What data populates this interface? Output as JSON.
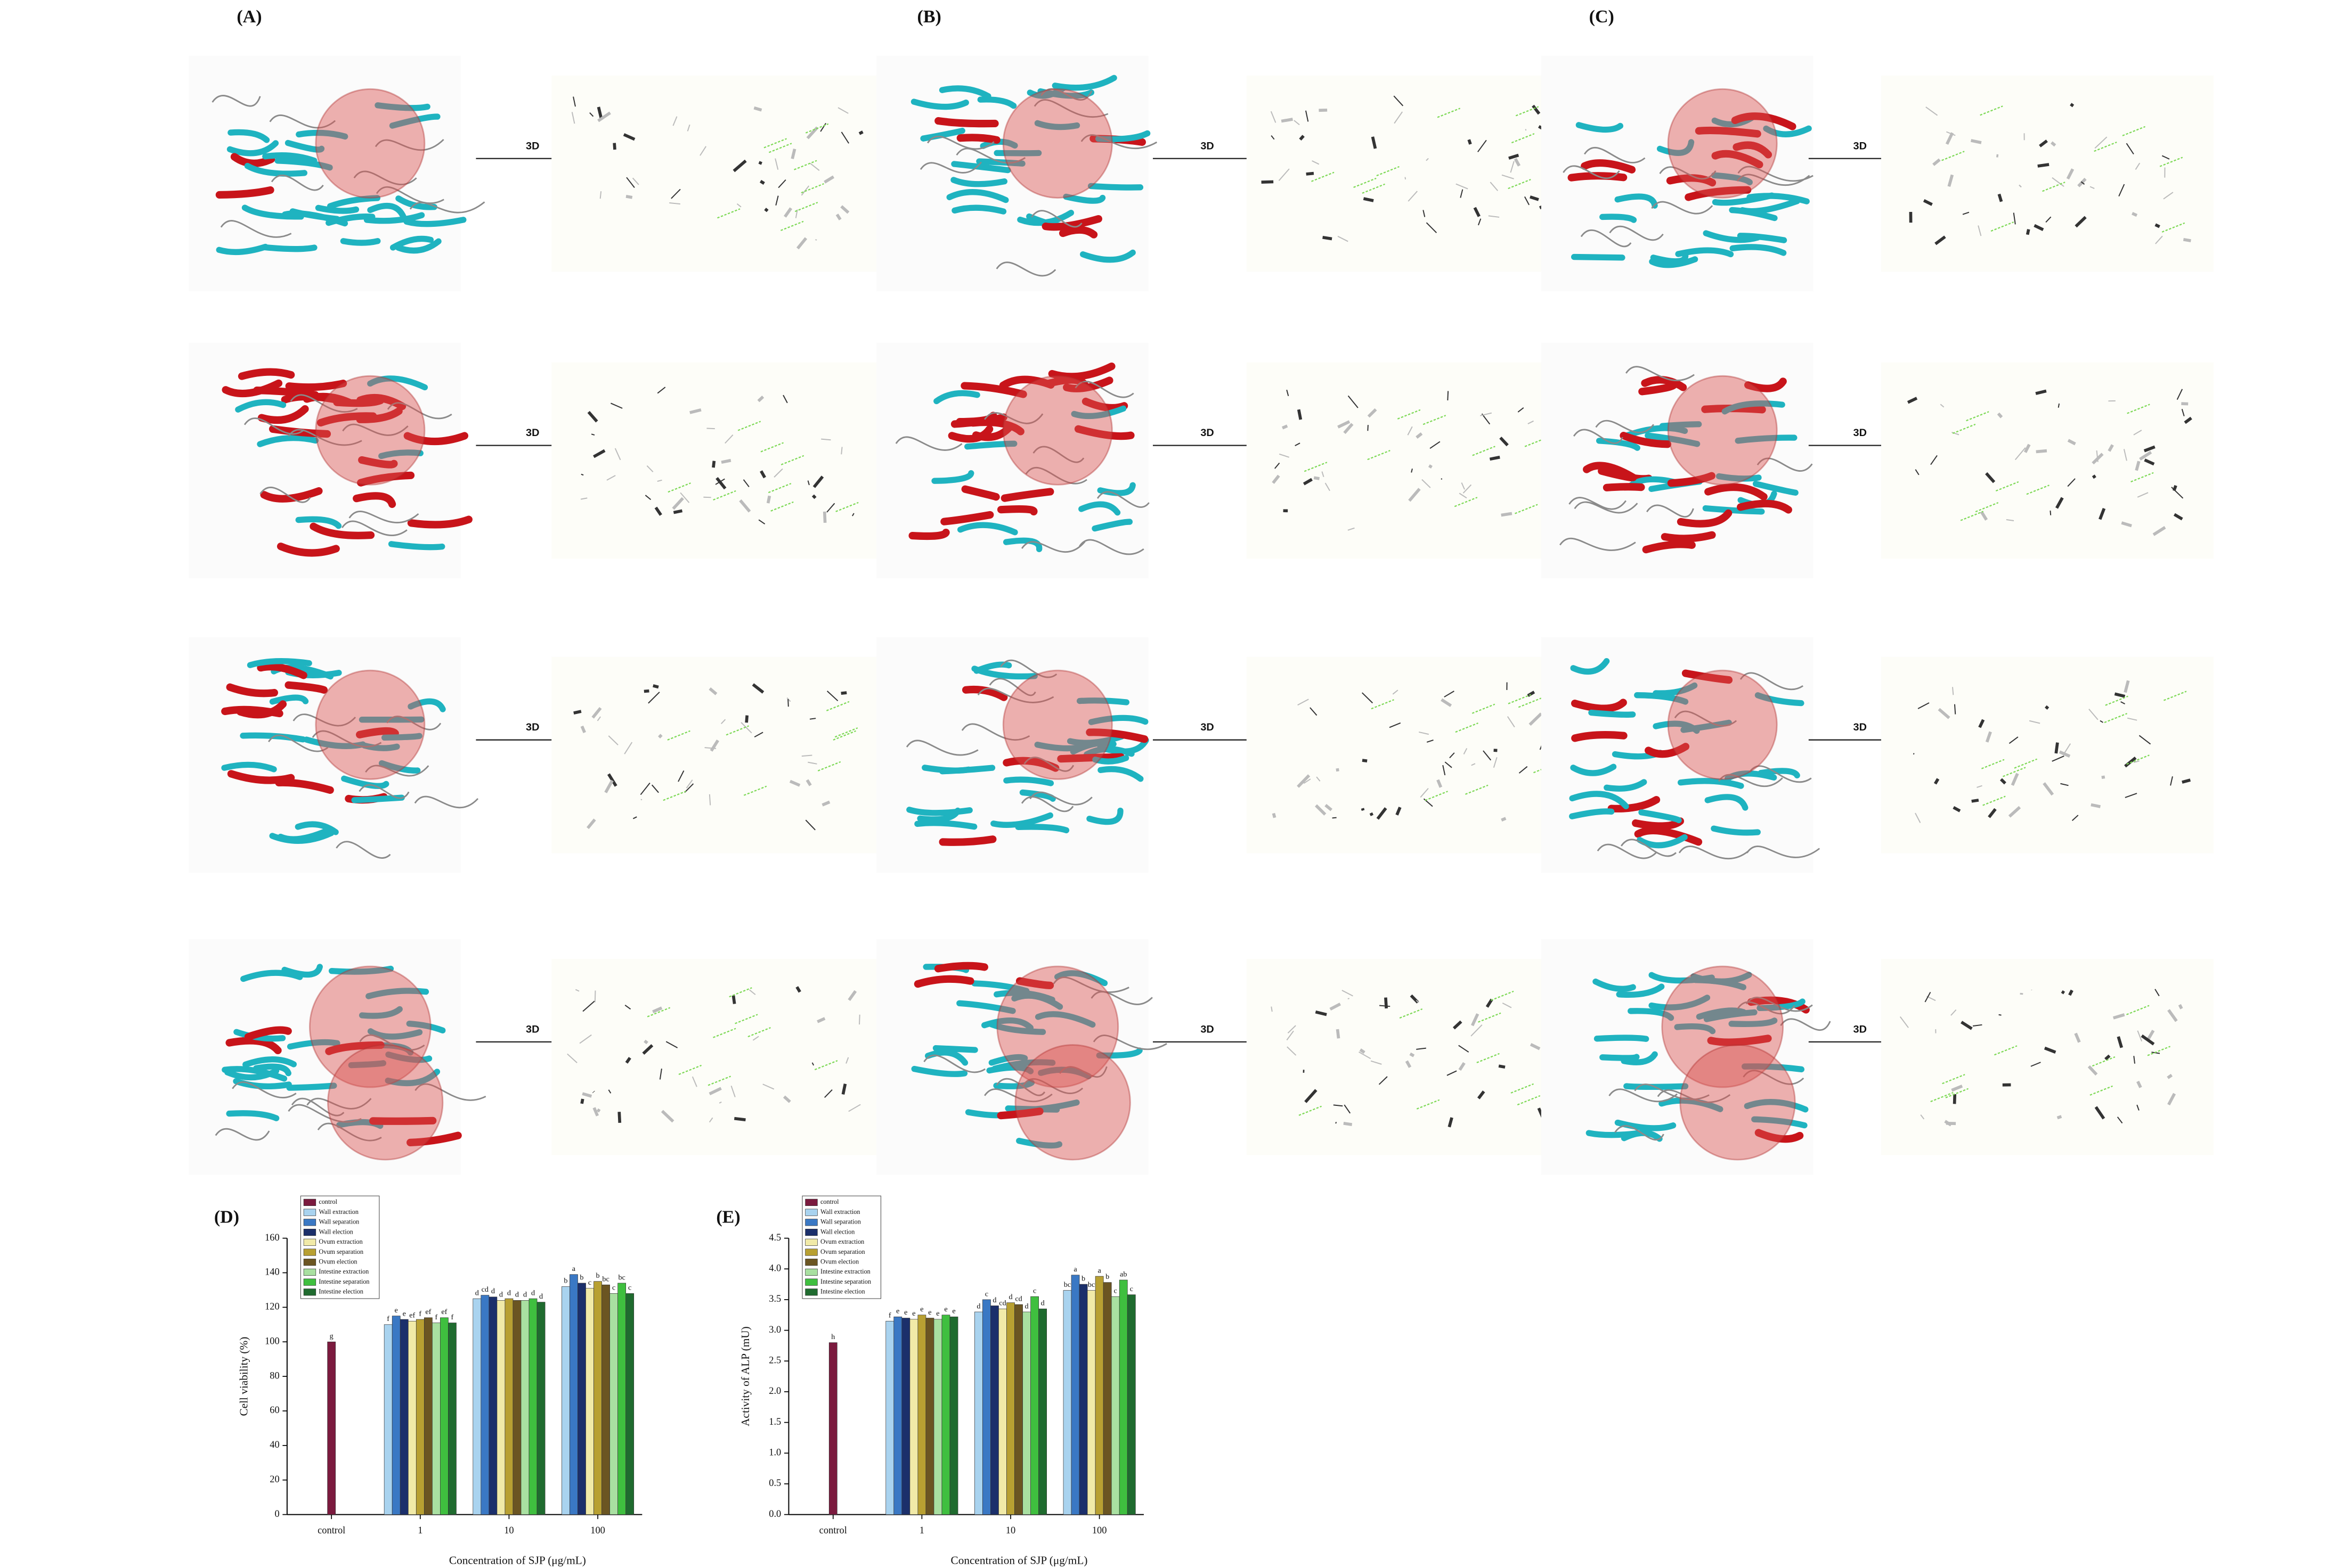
{
  "panels": [
    "(A)",
    "(B)",
    "(C)",
    "(D)",
    "(E)"
  ],
  "arrow_labels": [
    "3D",
    "3D",
    "3D",
    "3D",
    "3D",
    "3D",
    "3D",
    "3D",
    "3D",
    "3D",
    "3D",
    "3D"
  ],
  "chart_data": [
    {
      "type": "bar",
      "ylabel": "Cell viability (%)",
      "xlabel": "Concentration of SJP (μg/mL)",
      "categories": [
        "control",
        "1",
        "10",
        "100"
      ],
      "ylim": [
        0,
        160
      ],
      "yticks": [
        0,
        20,
        40,
        60,
        80,
        100,
        120,
        140,
        160
      ],
      "legend": "upper left",
      "series": [
        {
          "name": "control",
          "color": "#7b1a3e",
          "values": [
            100,
            null,
            null,
            null
          ],
          "significance": [
            "g",
            null,
            null,
            null
          ]
        },
        {
          "name": "Wall extraction",
          "color": "#a9d3ef",
          "values": [
            null,
            110,
            125,
            132
          ],
          "significance": [
            null,
            "f",
            "d",
            "b"
          ]
        },
        {
          "name": "Wall separation",
          "color": "#3a78c4",
          "values": [
            null,
            115,
            127,
            139
          ],
          "significance": [
            null,
            "e",
            "cd",
            "a"
          ]
        },
        {
          "name": "Wall election",
          "color": "#1b2f6b",
          "values": [
            null,
            113,
            126,
            134
          ],
          "significance": [
            null,
            "e",
            "d",
            "b"
          ]
        },
        {
          "name": "Ovum extraction",
          "color": "#f1eaa8",
          "values": [
            null,
            112,
            124,
            131
          ],
          "significance": [
            null,
            "ef",
            "d",
            "c"
          ]
        },
        {
          "name": "Ovum separation",
          "color": "#b8a032",
          "values": [
            null,
            113,
            125,
            135
          ],
          "significance": [
            null,
            "f",
            "d",
            "b"
          ]
        },
        {
          "name": "Ovum election",
          "color": "#6b5522",
          "values": [
            null,
            114,
            124,
            133
          ],
          "significance": [
            null,
            "ef",
            "d",
            "bc"
          ]
        },
        {
          "name": "Intestine extraction",
          "color": "#a9e0a1",
          "values": [
            null,
            111,
            124,
            128
          ],
          "significance": [
            null,
            "f",
            "d",
            "c"
          ]
        },
        {
          "name": "Intestine separation",
          "color": "#3fbf3f",
          "values": [
            null,
            114,
            125,
            134
          ],
          "significance": [
            null,
            "ef",
            "d",
            "bc"
          ]
        },
        {
          "name": "Intestine election",
          "color": "#1f6b2f",
          "values": [
            null,
            111,
            123,
            128
          ],
          "significance": [
            null,
            "f",
            "d",
            "c"
          ]
        }
      ]
    },
    {
      "type": "bar",
      "ylabel": "Activity of ALP (mU)",
      "xlabel": "Concentration of SJP (μg/mL)",
      "categories": [
        "control",
        "1",
        "10",
        "100"
      ],
      "ylim": [
        0,
        4.5
      ],
      "yticks": [
        {
          "value": 0,
          "label": "0.0"
        },
        0.5,
        {
          "value": 1,
          "label": "1.0"
        },
        1.5,
        {
          "value": 2,
          "label": "2.0"
        },
        2.5,
        {
          "value": 3,
          "label": "3.0"
        },
        3.5,
        {
          "value": 4,
          "label": "4.0"
        },
        4.5
      ],
      "legend": "upper left",
      "series": [
        {
          "name": "control",
          "color": "#7b1a3e",
          "values": [
            2.8,
            null,
            null,
            null
          ],
          "significance": [
            "h",
            null,
            null,
            null
          ]
        },
        {
          "name": "Wall extraction",
          "color": "#a9d3ef",
          "values": [
            null,
            3.15,
            3.3,
            3.65
          ],
          "significance": [
            null,
            "f",
            "d",
            "bc"
          ]
        },
        {
          "name": "Wall separation",
          "color": "#3a78c4",
          "values": [
            null,
            3.22,
            3.5,
            3.9
          ],
          "significance": [
            null,
            "e",
            "c",
            "a"
          ]
        },
        {
          "name": "Wall election",
          "color": "#1b2f6b",
          "values": [
            null,
            3.2,
            3.4,
            3.75
          ],
          "significance": [
            null,
            "e",
            "d",
            "b"
          ]
        },
        {
          "name": "Ovum extraction",
          "color": "#f1eaa8",
          "values": [
            null,
            3.18,
            3.35,
            3.65
          ],
          "significance": [
            null,
            "e",
            "cd",
            "bc"
          ]
        },
        {
          "name": "Ovum separation",
          "color": "#b8a032",
          "values": [
            null,
            3.25,
            3.45,
            3.88
          ],
          "significance": [
            null,
            "e",
            "d",
            "a"
          ]
        },
        {
          "name": "Ovum election",
          "color": "#6b5522",
          "values": [
            null,
            3.2,
            3.42,
            3.78
          ],
          "significance": [
            null,
            "e",
            "cd",
            "b"
          ]
        },
        {
          "name": "Intestine extraction",
          "color": "#a9e0a1",
          "values": [
            null,
            3.18,
            3.3,
            3.55
          ],
          "significance": [
            null,
            "e",
            "d",
            "c"
          ]
        },
        {
          "name": "Intestine separation",
          "color": "#3fbf3f",
          "values": [
            null,
            3.25,
            3.55,
            3.82
          ],
          "significance": [
            null,
            "e",
            "c",
            "ab"
          ]
        },
        {
          "name": "Intestine election",
          "color": "#1f6b2f",
          "values": [
            null,
            3.22,
            3.35,
            3.58
          ],
          "significance": [
            null,
            "e",
            "d",
            "c"
          ]
        }
      ]
    }
  ]
}
